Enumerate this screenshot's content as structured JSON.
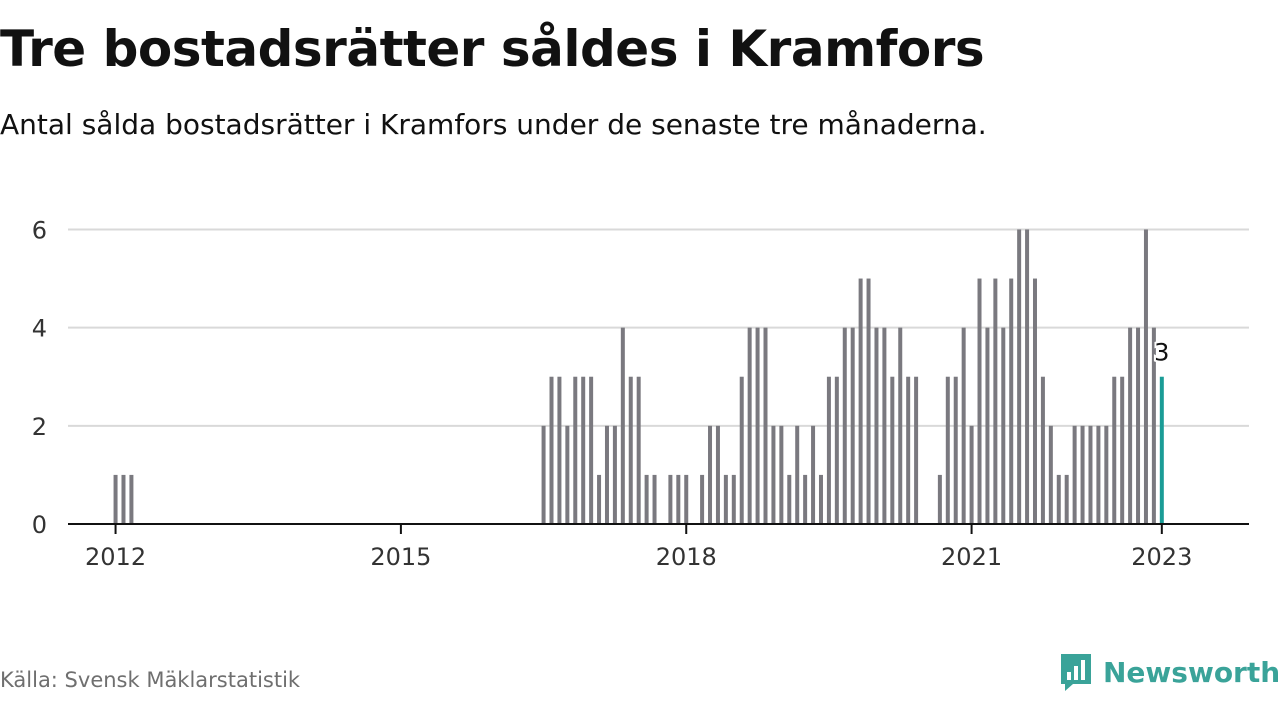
{
  "header": {
    "title": "Tre bostadsrätter såldes i Kramfors",
    "subtitle": "Antal sålda bostadsrätter i Kramfors under de senaste tre månaderna."
  },
  "footer": {
    "source": "Källa: Svensk Mäklarstatistik",
    "brand": "Newsworthy",
    "brand_icon": "bar-chart-speech-bubble-icon"
  },
  "colors": {
    "bar": "#7a797f",
    "highlight": "#1a9c96",
    "grid": "#d9d9d9",
    "axis": "#111111",
    "brand": "#3aa399"
  },
  "chart_data": {
    "type": "bar",
    "x_type": "month",
    "ylim": [
      0,
      6.6
    ],
    "yticks": [
      0,
      2,
      4,
      6
    ],
    "xticks": [
      "2012",
      "2015",
      "2018",
      "2021",
      "2023"
    ],
    "xlim": [
      "2011-07",
      "2023-12"
    ],
    "grid": true,
    "highlight_last": true,
    "last_label": "3",
    "series": [
      {
        "points": [
          [
            "2012-01",
            1
          ],
          [
            "2012-02",
            1
          ],
          [
            "2012-03",
            1
          ],
          [
            "2016-07",
            2
          ],
          [
            "2016-08",
            3
          ],
          [
            "2016-09",
            3
          ],
          [
            "2016-10",
            2
          ],
          [
            "2016-11",
            3
          ],
          [
            "2016-12",
            3
          ],
          [
            "2017-01",
            3
          ],
          [
            "2017-02",
            1
          ],
          [
            "2017-03",
            2
          ],
          [
            "2017-04",
            2
          ],
          [
            "2017-05",
            4
          ],
          [
            "2017-06",
            3
          ],
          [
            "2017-07",
            3
          ],
          [
            "2017-08",
            1
          ],
          [
            "2017-09",
            1
          ],
          [
            "2017-11",
            1
          ],
          [
            "2017-12",
            1
          ],
          [
            "2018-01",
            1
          ],
          [
            "2018-03",
            1
          ],
          [
            "2018-04",
            2
          ],
          [
            "2018-05",
            2
          ],
          [
            "2018-06",
            1
          ],
          [
            "2018-07",
            1
          ],
          [
            "2018-08",
            3
          ],
          [
            "2018-09",
            4
          ],
          [
            "2018-10",
            4
          ],
          [
            "2018-11",
            4
          ],
          [
            "2018-12",
            2
          ],
          [
            "2019-01",
            2
          ],
          [
            "2019-02",
            1
          ],
          [
            "2019-03",
            2
          ],
          [
            "2019-04",
            1
          ],
          [
            "2019-05",
            2
          ],
          [
            "2019-06",
            1
          ],
          [
            "2019-07",
            3
          ],
          [
            "2019-08",
            3
          ],
          [
            "2019-09",
            4
          ],
          [
            "2019-10",
            4
          ],
          [
            "2019-11",
            5
          ],
          [
            "2019-12",
            5
          ],
          [
            "2020-01",
            4
          ],
          [
            "2020-02",
            4
          ],
          [
            "2020-03",
            3
          ],
          [
            "2020-04",
            4
          ],
          [
            "2020-05",
            3
          ],
          [
            "2020-06",
            3
          ],
          [
            "2020-09",
            1
          ],
          [
            "2020-10",
            3
          ],
          [
            "2020-11",
            3
          ],
          [
            "2020-12",
            4
          ],
          [
            "2021-01",
            2
          ],
          [
            "2021-02",
            5
          ],
          [
            "2021-03",
            4
          ],
          [
            "2021-04",
            5
          ],
          [
            "2021-05",
            4
          ],
          [
            "2021-06",
            5
          ],
          [
            "2021-07",
            6
          ],
          [
            "2021-08",
            6
          ],
          [
            "2021-09",
            5
          ],
          [
            "2021-10",
            3
          ],
          [
            "2021-11",
            2
          ],
          [
            "2021-12",
            1
          ],
          [
            "2022-01",
            1
          ],
          [
            "2022-02",
            2
          ],
          [
            "2022-03",
            2
          ],
          [
            "2022-04",
            2
          ],
          [
            "2022-05",
            2
          ],
          [
            "2022-06",
            2
          ],
          [
            "2022-07",
            3
          ],
          [
            "2022-08",
            3
          ],
          [
            "2022-09",
            4
          ],
          [
            "2022-10",
            4
          ],
          [
            "2022-11",
            6
          ],
          [
            "2022-12",
            4
          ],
          [
            "2023-01",
            3
          ]
        ]
      }
    ]
  }
}
